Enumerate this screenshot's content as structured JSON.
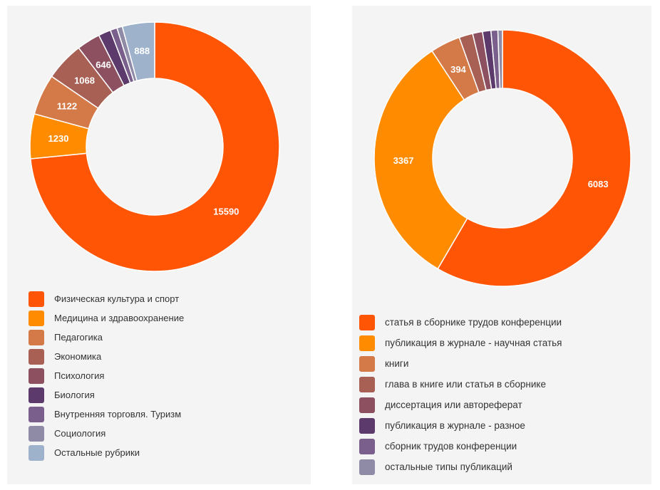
{
  "chart_data": [
    {
      "type": "pie",
      "series": [
        {
          "categories": [
            "Физическая культура и спорт",
            "Медицина и здравоохранение",
            "Педагогика",
            "Экономика",
            "Психология",
            "Биология",
            "Внутренняя торговля. Туризм",
            "Социология",
            "Остальные рубрики"
          ],
          "values": [
            15590,
            1230,
            1122,
            1068,
            646,
            340,
            190,
            150,
            888
          ],
          "data_labels": [
            "15590",
            "1230",
            "1122",
            "1068",
            "646",
            "",
            "",
            "",
            "888"
          ],
          "colors": [
            "#ff5505",
            "#ff8c00",
            "#d47a48",
            "#a86055",
            "#8c5060",
            "#5c3a6c",
            "#7a5f8c",
            "#8f8aa6",
            "#9fb2cc"
          ]
        }
      ],
      "legend": "bottom"
    },
    {
      "type": "pie",
      "series": [
        {
          "categories": [
            "статья в сборнике трудов конференции",
            "публикация в журнале - научная статья",
            "книги",
            "глава в книге или статья в сборнике",
            "диссертация или автореферат",
            "публикация в журнале - разное",
            "сборник трудов конференции",
            "остальные типы публикаций"
          ],
          "values": [
            6083,
            3367,
            394,
            180,
            130,
            110,
            90,
            60
          ],
          "data_labels": [
            "6083",
            "3367",
            "394",
            "",
            "",
            "",
            "",
            ""
          ],
          "colors": [
            "#ff5505",
            "#ff8c00",
            "#d47a48",
            "#a86055",
            "#8c5060",
            "#5c3a6c",
            "#7a5f8c",
            "#8f8aa6"
          ]
        }
      ],
      "legend": "bottom"
    }
  ]
}
